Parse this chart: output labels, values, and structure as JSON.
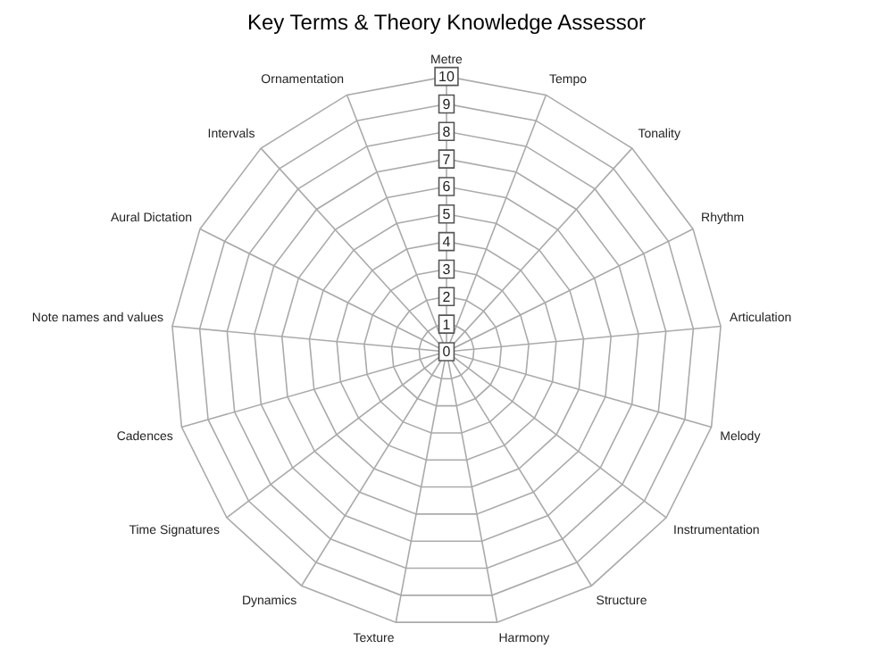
{
  "chart_data": {
    "type": "radar",
    "title": "Key Terms & Theory Knowledge Assessor",
    "categories": [
      "Metre",
      "Tempo",
      "Tonality",
      "Rhythm",
      "Articulation",
      "Melody",
      "Instrumentation",
      "Structure",
      "Harmony",
      "Texture",
      "Dynamics",
      "Time Signatures",
      "Cadences",
      "Note names and values",
      "Aural Dictation",
      "Intervals",
      "Ornamentation"
    ],
    "series": [
      {
        "values": [
          null,
          null,
          null,
          null,
          null,
          null,
          null,
          null,
          null,
          null,
          null,
          null,
          null,
          null,
          null,
          null,
          null
        ]
      }
    ],
    "ylim": [
      0,
      10
    ],
    "yticks": [
      0,
      1,
      2,
      3,
      4,
      5,
      6,
      7,
      8,
      9,
      10
    ],
    "grid": true,
    "legend": false
  }
}
